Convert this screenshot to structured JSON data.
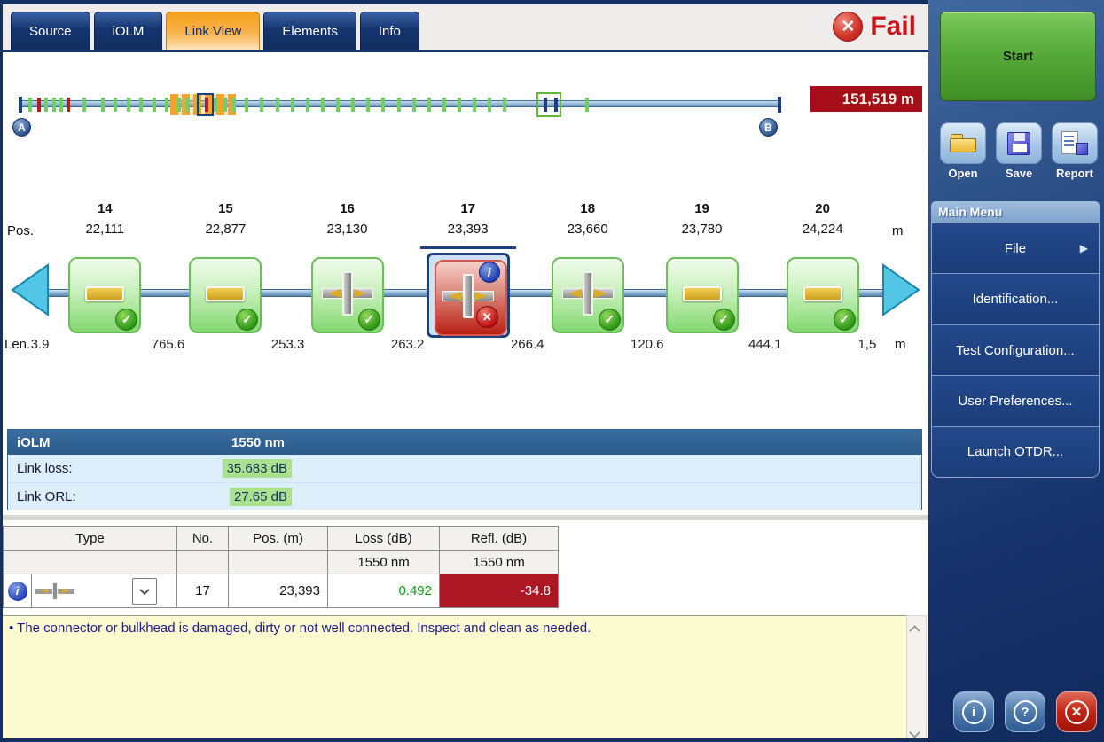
{
  "tabs": [
    {
      "label": "Source",
      "active": false
    },
    {
      "label": "iOLM",
      "active": false
    },
    {
      "label": "Link View",
      "active": true
    },
    {
      "label": "Elements",
      "active": false
    },
    {
      "label": "Info",
      "active": false
    }
  ],
  "status": {
    "label": "Fail",
    "glyph": "✕"
  },
  "overview": {
    "length_badge": "151,519 m",
    "marker_a": "A",
    "marker_b": "B",
    "ticks": [
      {
        "p": 1.0,
        "c": "g"
      },
      {
        "p": 2.2,
        "c": "r"
      },
      {
        "p": 3.2,
        "c": "g"
      },
      {
        "p": 4.2,
        "c": "g"
      },
      {
        "p": 5.1,
        "c": "g"
      },
      {
        "p": 6.1,
        "c": "r"
      },
      {
        "p": 8.2,
        "c": "g"
      },
      {
        "p": 10.6,
        "c": "g"
      },
      {
        "p": 12.3,
        "c": "g"
      },
      {
        "p": 14.0,
        "c": "g"
      },
      {
        "p": 15.7,
        "c": "g"
      },
      {
        "p": 17.4,
        "c": "g"
      },
      {
        "p": 19.1,
        "c": "g"
      },
      {
        "p": 20.7,
        "c": "g"
      },
      {
        "p": 21.9,
        "c": "g"
      },
      {
        "p": 23.1,
        "c": "g"
      },
      {
        "p": 24.3,
        "c": "r"
      },
      {
        "p": 25.5,
        "c": "g"
      },
      {
        "p": 26.7,
        "c": "g"
      },
      {
        "p": 27.9,
        "c": "g"
      },
      {
        "p": 29.6,
        "c": "g"
      },
      {
        "p": 31.6,
        "c": "g"
      },
      {
        "p": 33.6,
        "c": "g"
      },
      {
        "p": 35.6,
        "c": "g"
      },
      {
        "p": 37.6,
        "c": "g"
      },
      {
        "p": 39.6,
        "c": "g"
      },
      {
        "p": 41.6,
        "c": "g"
      },
      {
        "p": 43.6,
        "c": "g"
      },
      {
        "p": 45.6,
        "c": "g"
      },
      {
        "p": 47.6,
        "c": "g"
      },
      {
        "p": 49.6,
        "c": "g"
      },
      {
        "p": 51.6,
        "c": "g"
      },
      {
        "p": 53.6,
        "c": "g"
      },
      {
        "p": 55.6,
        "c": "g"
      },
      {
        "p": 57.6,
        "c": "g"
      },
      {
        "p": 59.6,
        "c": "g"
      },
      {
        "p": 61.6,
        "c": "g"
      },
      {
        "p": 63.6,
        "c": "g"
      },
      {
        "p": 68.9,
        "c": "n"
      },
      {
        "p": 70.3,
        "c": "n"
      },
      {
        "p": 74.4,
        "c": "g"
      }
    ],
    "orange_zone": {
      "from": 19.8,
      "to": 28.4
    },
    "navy_box": {
      "from": 23.3,
      "to": 25.5
    },
    "green_box": {
      "from": 68.0,
      "to": 71.3
    }
  },
  "elements_view": {
    "pos_label": "Pos.",
    "len_label": "Len.",
    "unit": "m",
    "elements": [
      {
        "no": "14",
        "pos": "22,111",
        "type": "splice",
        "status": "pass",
        "selected": false
      },
      {
        "no": "15",
        "pos": "22,877",
        "type": "splice",
        "status": "pass",
        "selected": false
      },
      {
        "no": "16",
        "pos": "23,130",
        "type": "connector",
        "status": "pass",
        "selected": false
      },
      {
        "no": "17",
        "pos": "23,393",
        "type": "connector",
        "status": "fail",
        "selected": true
      },
      {
        "no": "18",
        "pos": "23,660",
        "type": "connector",
        "status": "pass",
        "selected": false
      },
      {
        "no": "19",
        "pos": "23,780",
        "type": "splice",
        "status": "pass",
        "selected": false
      },
      {
        "no": "20",
        "pos": "24,224",
        "type": "splice",
        "status": "pass",
        "selected": false
      }
    ],
    "lengths": [
      "3.9",
      "765.6",
      "253.3",
      "263.2",
      "266.4",
      "120.6",
      "444.1",
      "1,5"
    ],
    "status_glyphs": {
      "pass": "✓",
      "fail": "✕",
      "info": "i"
    }
  },
  "iolm_panel": {
    "title": "iOLM",
    "wavelength": "1550 nm",
    "rows": [
      {
        "label": "Link loss:",
        "value": "35.683 dB"
      },
      {
        "label": "Link ORL:",
        "value": "27.65 dB"
      }
    ]
  },
  "element_table": {
    "headers": {
      "type": "Type",
      "no": "No.",
      "pos": "Pos. (m)",
      "loss": "Loss (dB)",
      "refl": "Refl. (dB)"
    },
    "subheaders": {
      "loss_wl": "1550 nm",
      "refl_wl": "1550 nm"
    },
    "row": {
      "no": "17",
      "pos": "23,393",
      "loss": "0.492",
      "refl": "-34.8",
      "type": "connector"
    }
  },
  "message": {
    "bullet": "•",
    "text": "The connector or bulkhead is damaged, dirty or not well connected. Inspect and clean as needed."
  },
  "sidebar": {
    "start_label": "Start",
    "file_buttons": [
      {
        "label": "Open"
      },
      {
        "label": "Save"
      },
      {
        "label": "Report"
      }
    ],
    "menu_title": "Main Menu",
    "menu_items": [
      {
        "label": "File",
        "has_arrow": true
      },
      {
        "label": "Identification...",
        "has_arrow": false
      },
      {
        "label": "Test Configuration...",
        "has_arrow": false
      },
      {
        "label": "User Preferences...",
        "has_arrow": false
      },
      {
        "label": "Launch OTDR...",
        "has_arrow": false
      }
    ],
    "system_buttons": {
      "info": "i",
      "help": "?",
      "close": "✕"
    }
  },
  "colors": {
    "fail_red": "#c1151b",
    "pass_green": "#2f9718",
    "active_tab_orange": "#f6a01f",
    "badge_bg": "#a50d19",
    "refl_bad_bg": "#ad1723",
    "loss_ok_green": "#11a011",
    "value_highlight_green": "#a9e18e",
    "sidebar_blue": "#1b3568"
  }
}
